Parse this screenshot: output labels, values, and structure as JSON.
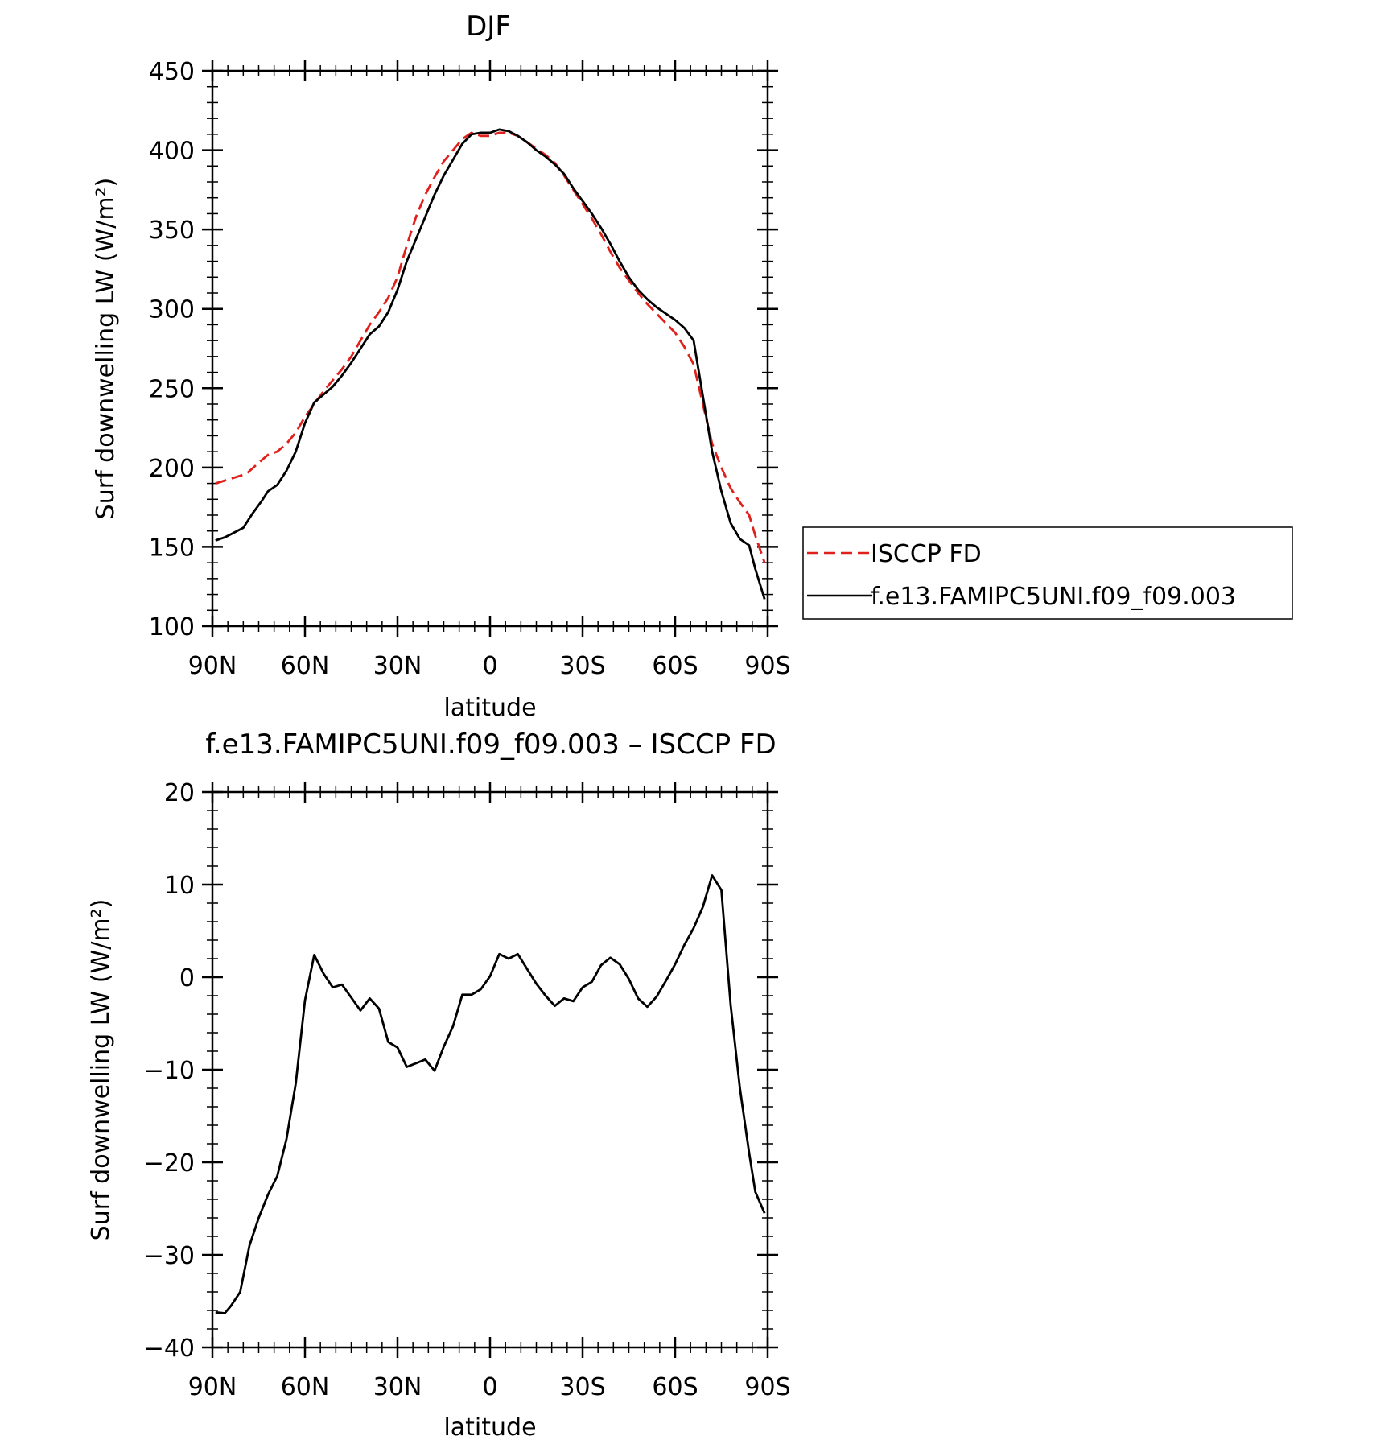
{
  "chart_data": [
    {
      "type": "line",
      "title": "DJF",
      "xlabel": "latitude",
      "ylabel": "Surf downwelling LW (W/m²)",
      "xlim": [
        -90,
        90
      ],
      "ylim": [
        100,
        450
      ],
      "yticks": [
        100,
        150,
        200,
        250,
        300,
        350,
        400,
        450
      ],
      "xticks": [
        {
          "value": -90,
          "label": "90N"
        },
        {
          "value": -60,
          "label": "60N"
        },
        {
          "value": -30,
          "label": "30N"
        },
        {
          "value": 0,
          "label": "0"
        },
        {
          "value": 30,
          "label": "30S"
        },
        {
          "value": 60,
          "label": "60S"
        },
        {
          "value": 90,
          "label": "90S"
        }
      ],
      "legend_position": "right",
      "series": [
        {
          "name": "ISCCP FD",
          "color": "#e0201b",
          "dash": true,
          "x": [
            -89,
            -84,
            -79,
            -75,
            -72,
            -69,
            -66,
            -63,
            -60,
            -57,
            -54,
            -51,
            -48,
            -45,
            -42,
            -39,
            -36,
            -33,
            -30,
            -27,
            -24,
            -21,
            -18,
            -15,
            -12,
            -9,
            -6,
            -3,
            0,
            3,
            6,
            9,
            12,
            15,
            18,
            21,
            24,
            27,
            30,
            33,
            36,
            39,
            42,
            45,
            48,
            51,
            54,
            57,
            60,
            63,
            66,
            69,
            72,
            75,
            78,
            81,
            84,
            86,
            89
          ],
          "values": [
            190,
            193,
            196,
            203,
            208,
            210,
            215,
            222,
            232,
            240,
            248,
            255,
            262,
            270,
            280,
            290,
            298,
            307,
            320,
            340,
            358,
            372,
            383,
            393,
            400,
            407,
            411,
            409,
            409,
            411,
            411,
            409,
            405,
            401,
            397,
            392,
            384,
            375,
            366,
            357,
            347,
            336,
            326,
            318,
            310,
            303,
            297,
            291,
            285,
            276,
            265,
            240,
            215,
            200,
            187,
            178,
            170,
            157,
            140
          ]
        },
        {
          "name": "f.e13.FAMIPC5UNI.f09_f09.003",
          "color": "#000000",
          "dash": false,
          "x": [
            -89,
            -86,
            -84,
            -80,
            -77,
            -74,
            -72,
            -69,
            -66,
            -63,
            -60,
            -57,
            -54,
            -51,
            -48,
            -45,
            -42,
            -39,
            -36,
            -33,
            -30,
            -27,
            -24,
            -21,
            -18,
            -15,
            -12,
            -9,
            -6,
            -3,
            0,
            3,
            6,
            9,
            12,
            15,
            18,
            21,
            24,
            27,
            30,
            33,
            36,
            39,
            42,
            45,
            48,
            51,
            54,
            57,
            60,
            63,
            66,
            69,
            72,
            75,
            78,
            81,
            84,
            86,
            89
          ],
          "values": [
            154,
            156,
            158,
            162,
            171,
            179,
            185,
            189,
            198,
            210,
            228,
            241,
            246,
            251,
            258,
            266,
            275,
            284,
            289,
            298,
            312,
            330,
            344,
            358,
            372,
            384,
            394,
            404,
            410,
            411,
            411,
            413,
            412,
            409,
            405,
            400,
            396,
            391,
            385,
            376,
            368,
            360,
            351,
            341,
            330,
            320,
            312,
            306,
            301,
            297,
            293,
            288,
            280,
            245,
            210,
            185,
            165,
            155,
            151,
            136,
            117
          ]
        }
      ]
    },
    {
      "type": "line",
      "title": "f.e13.FAMIPC5UNI.f09_f09.003 – ISCCP FD",
      "xlabel": "latitude",
      "ylabel": "Surf downwelling LW (W/m²)",
      "xlim": [
        -90,
        90
      ],
      "ylim": [
        -40,
        20
      ],
      "yticks": [
        -40,
        -30,
        -20,
        -10,
        0,
        10,
        20
      ],
      "ytick_labels": [
        "−40",
        "−30",
        "−20",
        "−10",
        "0",
        "10",
        "20"
      ],
      "xticks": [
        {
          "value": -90,
          "label": "90N"
        },
        {
          "value": -60,
          "label": "60N"
        },
        {
          "value": -30,
          "label": "30N"
        },
        {
          "value": 0,
          "label": "0"
        },
        {
          "value": 30,
          "label": "30S"
        },
        {
          "value": 60,
          "label": "60S"
        },
        {
          "value": 90,
          "label": "90S"
        }
      ],
      "series": [
        {
          "color": "#000000",
          "x": [
            -89,
            -86,
            -84,
            -81,
            -78,
            -75,
            -72,
            -69,
            -66,
            -63,
            -60,
            -57,
            -54,
            -51,
            -48,
            -45,
            -42,
            -39,
            -36,
            -33,
            -30,
            -27,
            -24,
            -21,
            -18,
            -15,
            -12,
            -9,
            -6,
            -3,
            0,
            3,
            6,
            9,
            12,
            15,
            18,
            21,
            24,
            27,
            30,
            33,
            36,
            39,
            42,
            45,
            48,
            51,
            54,
            57,
            60,
            63,
            66,
            69,
            72,
            75,
            78,
            81,
            84,
            86,
            89
          ],
          "values": [
            -36.2,
            -36.3,
            -35.5,
            -34,
            -29,
            -26,
            -23.5,
            -21.5,
            -17.5,
            -11.5,
            -2.5,
            2.4,
            0.4,
            -1.1,
            -0.8,
            -2.2,
            -3.6,
            -2.3,
            -3.4,
            -7,
            -7.6,
            -9.7,
            -9.3,
            -8.9,
            -10.1,
            -7.5,
            -5.3,
            -1.9,
            -1.9,
            -1.3,
            0.1,
            2.5,
            2.0,
            2.5,
            0.9,
            -0.7,
            -2.0,
            -3.1,
            -2.3,
            -2.6,
            -1.1,
            -0.5,
            1.3,
            2.1,
            1.4,
            -0.2,
            -2.3,
            -3.2,
            -2.1,
            -0.4,
            1.4,
            3.5,
            5.3,
            7.6,
            11.0,
            9.4,
            -3,
            -12,
            -19,
            -23.2,
            -25.5
          ]
        }
      ]
    }
  ],
  "legend": {
    "items": [
      {
        "name": "ISCCP FD"
      },
      {
        "name": "f.e13.FAMIPC5UNI.f09_f09.003"
      }
    ]
  }
}
